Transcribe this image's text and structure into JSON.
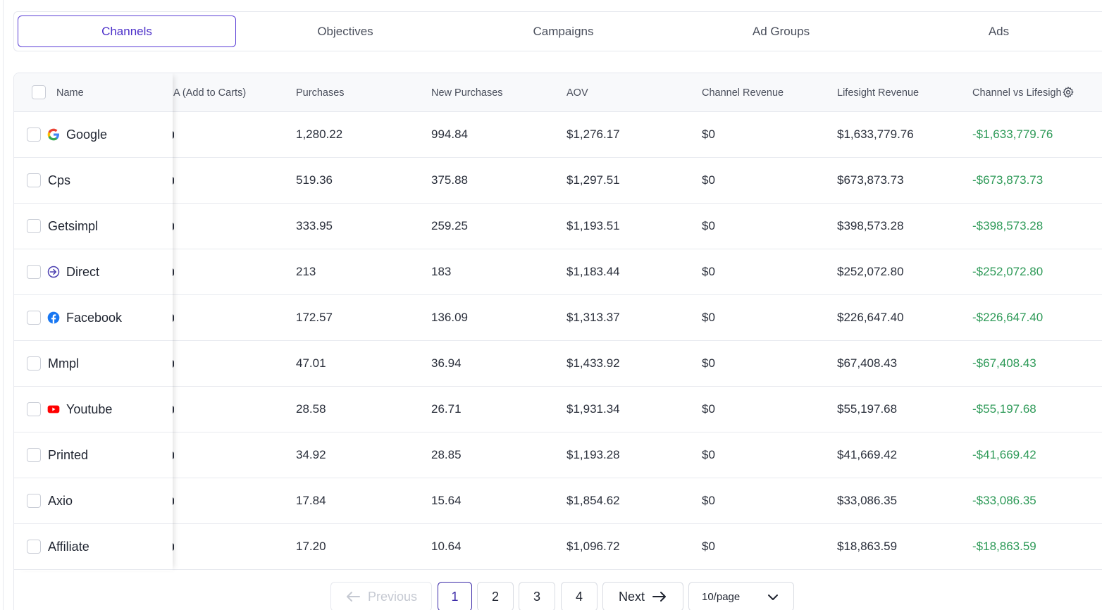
{
  "tabs": [
    {
      "label": "Channels",
      "active": true
    },
    {
      "label": "Objectives"
    },
    {
      "label": "Campaigns"
    },
    {
      "label": "Ad Groups"
    },
    {
      "label": "Ads"
    }
  ],
  "table": {
    "columns": {
      "name": "Name",
      "cpa": "A (Add to Carts)",
      "purchases": "Purchases",
      "new_purchases": "New Purchases",
      "aov": "AOV",
      "channel_revenue": "Channel Revenue",
      "lifesight_revenue": "Lifesight Revenue",
      "channel_vs_lifesight": "Channel vs Lifesigh"
    },
    "rows": [
      {
        "name": "Google",
        "icon": "google-icon",
        "purchases": "1,280.22",
        "new_purchases": "994.84",
        "aov": "$1,276.17",
        "channel_revenue": "$0",
        "lifesight_revenue": "$1,633,779.76",
        "diff": "-$1,633,779.76"
      },
      {
        "name": "Cps",
        "icon": "",
        "purchases": "519.36",
        "new_purchases": "375.88",
        "aov": "$1,297.51",
        "channel_revenue": "$0",
        "lifesight_revenue": "$673,873.73",
        "diff": "-$673,873.73"
      },
      {
        "name": "Getsimpl",
        "icon": "",
        "purchases": "333.95",
        "new_purchases": "259.25",
        "aov": "$1,193.51",
        "channel_revenue": "$0",
        "lifesight_revenue": "$398,573.28",
        "diff": "-$398,573.28"
      },
      {
        "name": "Direct",
        "icon": "direct-icon",
        "purchases": "213",
        "new_purchases": "183",
        "aov": "$1,183.44",
        "channel_revenue": "$0",
        "lifesight_revenue": "$252,072.80",
        "diff": "-$252,072.80"
      },
      {
        "name": "Facebook",
        "icon": "facebook-icon",
        "purchases": "172.57",
        "new_purchases": "136.09",
        "aov": "$1,313.37",
        "channel_revenue": "$0",
        "lifesight_revenue": "$226,647.40",
        "diff": "-$226,647.40"
      },
      {
        "name": "Mmpl",
        "icon": "",
        "purchases": "47.01",
        "new_purchases": "36.94",
        "aov": "$1,433.92",
        "channel_revenue": "$0",
        "lifesight_revenue": "$67,408.43",
        "diff": "-$67,408.43"
      },
      {
        "name": "Youtube",
        "icon": "youtube-icon",
        "purchases": "28.58",
        "new_purchases": "26.71",
        "aov": "$1,931.34",
        "channel_revenue": "$0",
        "lifesight_revenue": "$55,197.68",
        "diff": "-$55,197.68"
      },
      {
        "name": "Printed",
        "icon": "",
        "purchases": "34.92",
        "new_purchases": "28.85",
        "aov": "$1,193.28",
        "channel_revenue": "$0",
        "lifesight_revenue": "$41,669.42",
        "diff": "-$41,669.42"
      },
      {
        "name": "Axio",
        "icon": "",
        "purchases": "17.84",
        "new_purchases": "15.64",
        "aov": "$1,854.62",
        "channel_revenue": "$0",
        "lifesight_revenue": "$33,086.35",
        "diff": "-$33,086.35"
      },
      {
        "name": "Affiliate",
        "icon": "",
        "purchases": "17.20",
        "new_purchases": "10.64",
        "aov": "$1,096.72",
        "channel_revenue": "$0",
        "lifesight_revenue": "$18,863.59",
        "diff": "-$18,863.59"
      }
    ]
  },
  "pagination": {
    "previous_label": "Previous",
    "next_label": "Next",
    "pages": [
      "1",
      "2",
      "3",
      "4"
    ],
    "current_page": "1",
    "page_size": "10/page"
  },
  "colors": {
    "accent": "#5b3fd6",
    "positive": "#2e9a58"
  }
}
